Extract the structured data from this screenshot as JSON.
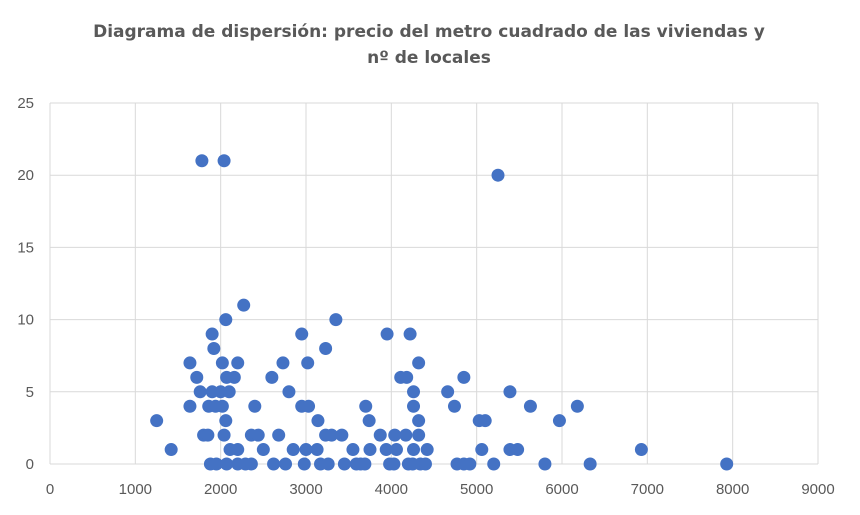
{
  "chart_data": {
    "type": "scatter",
    "title": "Diagrama de dispersión: precio del metro cuadrado de las viviendas y nº de locales",
    "title_lines": [
      "Diagrama de dispersión: precio del metro cuadrado de las viviendas y",
      "nº de locales"
    ],
    "xlabel": "",
    "ylabel": "",
    "xlim": [
      0,
      9000
    ],
    "ylim": [
      0,
      25
    ],
    "x_ticks": [
      "0",
      "1000",
      "2000",
      "3000",
      "4000",
      "5000",
      "6000",
      "7000",
      "8000",
      "9000"
    ],
    "y_ticks": [
      "0",
      "5",
      "10",
      "15",
      "20",
      "25"
    ],
    "grid": true,
    "marker_color": "#4472c4",
    "points": [
      [
        1780,
        21
      ],
      [
        2040,
        21
      ],
      [
        5250,
        20
      ],
      [
        2270,
        11
      ],
      [
        2060,
        10
      ],
      [
        3350,
        10
      ],
      [
        1900,
        9
      ],
      [
        2950,
        9
      ],
      [
        3950,
        9
      ],
      [
        4220,
        9
      ],
      [
        1920,
        8
      ],
      [
        3230,
        8
      ],
      [
        1640,
        7
      ],
      [
        2020,
        7
      ],
      [
        2200,
        7
      ],
      [
        2730,
        7
      ],
      [
        3020,
        7
      ],
      [
        4320,
        7
      ],
      [
        1720,
        6
      ],
      [
        2070,
        6
      ],
      [
        2160,
        6
      ],
      [
        2600,
        6
      ],
      [
        4110,
        6
      ],
      [
        4180,
        6
      ],
      [
        4850,
        6
      ],
      [
        1760,
        5
      ],
      [
        1900,
        5
      ],
      [
        2000,
        5
      ],
      [
        2100,
        5
      ],
      [
        2800,
        5
      ],
      [
        4260,
        5
      ],
      [
        4660,
        5
      ],
      [
        5390,
        5
      ],
      [
        1640,
        4
      ],
      [
        1860,
        4
      ],
      [
        1940,
        4
      ],
      [
        2020,
        4
      ],
      [
        2400,
        4
      ],
      [
        2950,
        4
      ],
      [
        3030,
        4
      ],
      [
        3700,
        4
      ],
      [
        4260,
        4
      ],
      [
        4740,
        4
      ],
      [
        5630,
        4
      ],
      [
        6180,
        4
      ],
      [
        1250,
        3
      ],
      [
        2060,
        3
      ],
      [
        3140,
        3
      ],
      [
        3740,
        3
      ],
      [
        4320,
        3
      ],
      [
        5030,
        3
      ],
      [
        5100,
        3
      ],
      [
        5970,
        3
      ],
      [
        1800,
        2
      ],
      [
        1850,
        2
      ],
      [
        2040,
        2
      ],
      [
        2360,
        2
      ],
      [
        2440,
        2
      ],
      [
        2680,
        2
      ],
      [
        3230,
        2
      ],
      [
        3300,
        2
      ],
      [
        3420,
        2
      ],
      [
        3870,
        2
      ],
      [
        4040,
        2
      ],
      [
        4170,
        2
      ],
      [
        4320,
        2
      ],
      [
        1420,
        1
      ],
      [
        2110,
        1
      ],
      [
        2200,
        1
      ],
      [
        2500,
        1
      ],
      [
        2850,
        1
      ],
      [
        3000,
        1
      ],
      [
        3130,
        1
      ],
      [
        3550,
        1
      ],
      [
        3750,
        1
      ],
      [
        3940,
        1
      ],
      [
        4060,
        1
      ],
      [
        4260,
        1
      ],
      [
        4420,
        1
      ],
      [
        5060,
        1
      ],
      [
        5390,
        1
      ],
      [
        5480,
        1
      ],
      [
        6930,
        1
      ],
      [
        1880,
        0
      ],
      [
        1950,
        0
      ],
      [
        2070,
        0
      ],
      [
        2200,
        0
      ],
      [
        2290,
        0
      ],
      [
        2360,
        0
      ],
      [
        2620,
        0
      ],
      [
        2760,
        0
      ],
      [
        2980,
        0
      ],
      [
        3170,
        0
      ],
      [
        3260,
        0
      ],
      [
        3450,
        0
      ],
      [
        3590,
        0
      ],
      [
        3640,
        0
      ],
      [
        3690,
        0
      ],
      [
        3980,
        0
      ],
      [
        4030,
        0
      ],
      [
        4200,
        0
      ],
      [
        4250,
        0
      ],
      [
        4340,
        0
      ],
      [
        4400,
        0
      ],
      [
        4770,
        0
      ],
      [
        4850,
        0
      ],
      [
        4920,
        0
      ],
      [
        5200,
        0
      ],
      [
        5800,
        0
      ],
      [
        6330,
        0
      ],
      [
        7930,
        0
      ]
    ]
  }
}
